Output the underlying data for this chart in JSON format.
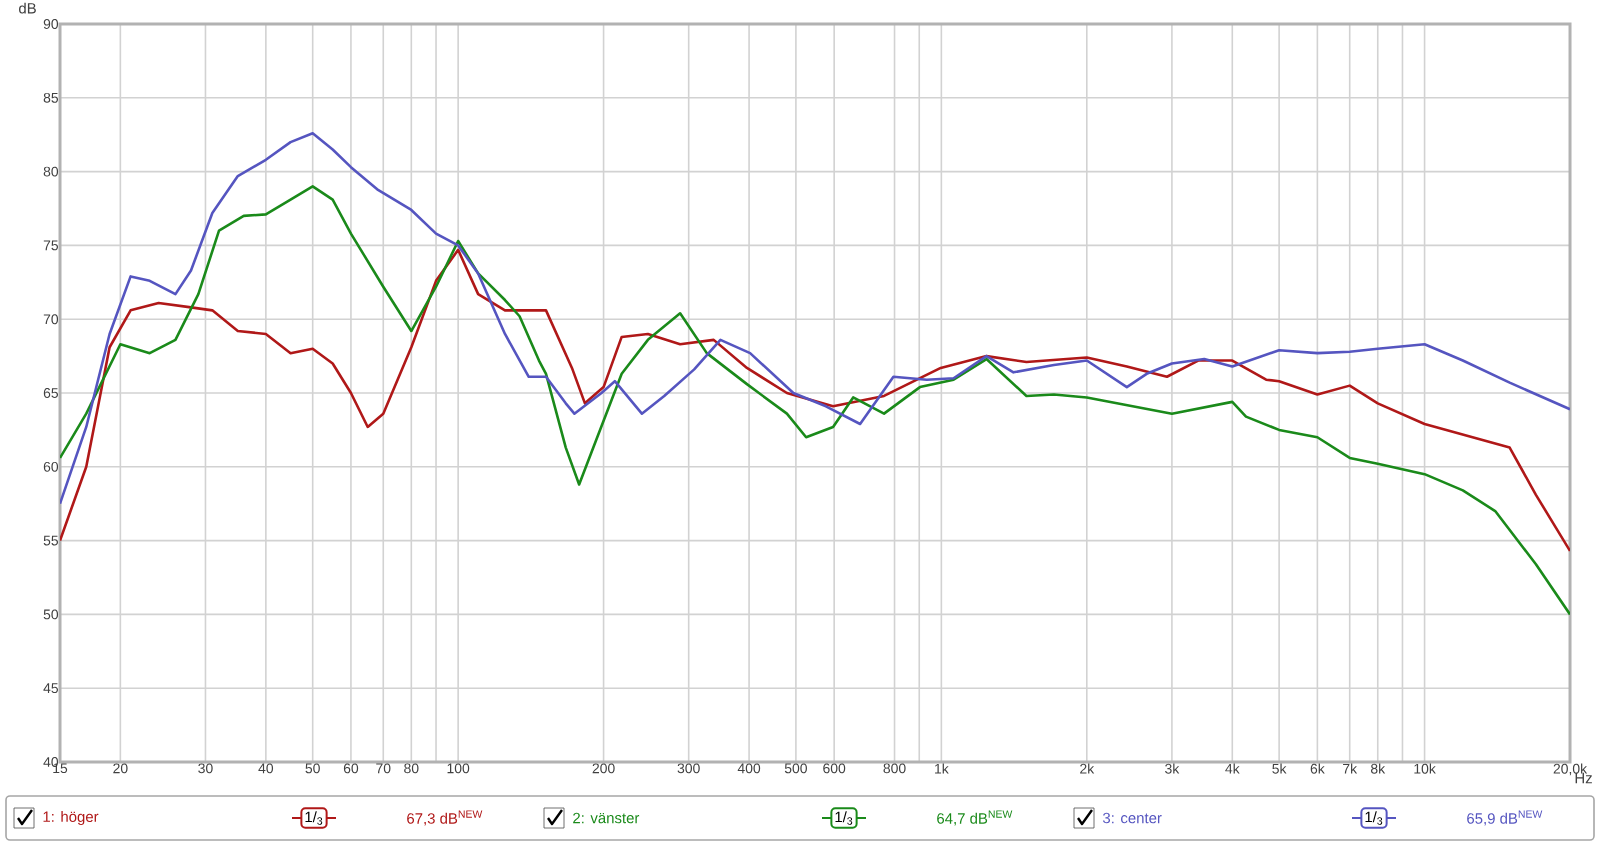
{
  "chart_data": {
    "type": "line",
    "xlabel": "Hz",
    "ylabel": "dB",
    "log": "x",
    "grid": true,
    "legend": "bottom",
    "line_style": "solid",
    "xlim": [
      15,
      20000
    ],
    "ylim": [
      40,
      90
    ],
    "xticks": [
      15,
      20,
      30,
      40,
      50,
      60,
      70,
      80,
      {
        "value": 90,
        "label": null
      },
      100,
      200,
      300,
      400,
      500,
      600,
      800,
      {
        "value": 900,
        "label": null
      },
      {
        "value": 1000,
        "label": "1k"
      },
      {
        "value": 2000,
        "label": "2k"
      },
      {
        "value": 3000,
        "label": "3k"
      },
      {
        "value": 4000,
        "label": "4k"
      },
      {
        "value": 5000,
        "label": "5k"
      },
      {
        "value": 6000,
        "label": "6k"
      },
      {
        "value": 7000,
        "label": "7k"
      },
      {
        "value": 8000,
        "label": "8k"
      },
      {
        "value": 9000,
        "label": null
      },
      {
        "value": 10000,
        "label": "10k"
      },
      {
        "value": 20000,
        "label": "20,0k"
      }
    ],
    "yticks": [
      40,
      45,
      50,
      55,
      60,
      65,
      70,
      75,
      80,
      85,
      90
    ],
    "annotations": [
      "1/$_{3}$",
      "67,3 dB$^{NEW}$",
      "1/$_{3}$",
      "64,7 dB$^{NEW}$",
      "1/$_{3}$",
      "65,9 dB$^{NEW}$"
    ],
    "series": [
      {
        "name": "1: höger",
        "color": "#b01818",
        "x": [
          15,
          17,
          19,
          21,
          24,
          28,
          31,
          35,
          40,
          45,
          50,
          55,
          60,
          65,
          70,
          80,
          90,
          100,
          110,
          125,
          140,
          152,
          172,
          183,
          200,
          218,
          247,
          288,
          338,
          396,
          479,
          597,
          761,
          997,
          1240,
          1500,
          2000,
          2420,
          2930,
          3400,
          4000,
          4700,
          5000,
          6000,
          7000,
          8000,
          10000,
          15000,
          17000,
          20000
        ],
        "values": [
          55,
          60,
          68.1,
          70.6,
          71.1,
          70.8,
          70.6,
          69.2,
          69,
          67.7,
          68,
          67,
          65,
          62.7,
          63.6,
          68.1,
          72.6,
          74.7,
          71.7,
          70.6,
          70.6,
          70.6,
          66.7,
          64.3,
          65.4,
          68.8,
          69,
          68.3,
          68.6,
          66.7,
          65,
          64.1,
          64.8,
          66.7,
          67.5,
          67.1,
          67.4,
          66.8,
          66.1,
          67.2,
          67.2,
          65.9,
          65.8,
          64.9,
          65.5,
          64.3,
          62.9,
          61.3,
          58.1,
          54.3
        ]
      },
      {
        "name": "2: vänster",
        "color": "#1a8a1a",
        "x": [
          15,
          17,
          20,
          23,
          26,
          29,
          32,
          36,
          40,
          45,
          50,
          55,
          60,
          70,
          80,
          90,
          100,
          110,
          125,
          134,
          147,
          152,
          167,
          178,
          193,
          218,
          247,
          288,
          327,
          396,
          479,
          525,
          597,
          657,
          761,
          903,
          1060,
          1240,
          1500,
          1710,
          2000,
          3000,
          4000,
          4270,
          5000,
          6000,
          7000,
          8000,
          10000,
          12000,
          14000,
          17000,
          20000
        ],
        "values": [
          60.6,
          63.6,
          68.3,
          67.7,
          68.6,
          71.7,
          76,
          77,
          77.1,
          78.1,
          79,
          78.1,
          75.8,
          72.2,
          69.2,
          72.2,
          75.3,
          73.1,
          71.3,
          70.2,
          67.2,
          66.3,
          61.3,
          58.8,
          61.8,
          66.3,
          68.6,
          70.4,
          67.7,
          65.6,
          63.6,
          62,
          62.7,
          64.7,
          63.6,
          65.4,
          65.9,
          67.3,
          64.8,
          64.9,
          64.7,
          63.6,
          64.4,
          63.4,
          62.5,
          62,
          60.6,
          60.2,
          59.5,
          58.4,
          57,
          53.4,
          50
        ]
      },
      {
        "name": "3: center",
        "color": "#5555c0",
        "x": [
          15,
          17,
          19,
          21,
          23,
          26,
          28,
          31,
          35,
          40,
          45,
          50,
          55,
          60,
          68,
          80,
          90,
          100,
          110,
          125,
          140,
          152,
          167,
          174,
          198,
          211,
          240,
          267,
          308,
          349,
          402,
          494,
          577,
          679,
          796,
          933,
          1060,
          1240,
          1410,
          1710,
          2000,
          2420,
          2660,
          3000,
          3500,
          4000,
          5000,
          6000,
          7000,
          8000,
          10000,
          12000,
          15000,
          20000
        ],
        "values": [
          57.5,
          62.7,
          69,
          72.9,
          72.6,
          71.7,
          73.3,
          77.2,
          79.7,
          80.8,
          82,
          82.6,
          81.5,
          80.3,
          78.8,
          77.4,
          75.8,
          75,
          73.1,
          69,
          66.1,
          66.1,
          64.3,
          63.6,
          65,
          65.8,
          63.6,
          64.8,
          66.6,
          68.6,
          67.7,
          65,
          64.1,
          62.9,
          66.1,
          65.9,
          66,
          67.5,
          66.4,
          66.9,
          67.2,
          65.4,
          66.3,
          67,
          67.3,
          66.8,
          67.9,
          67.7,
          67.8,
          68,
          68.3,
          67.2,
          65.7,
          63.9
        ]
      }
    ]
  }
}
